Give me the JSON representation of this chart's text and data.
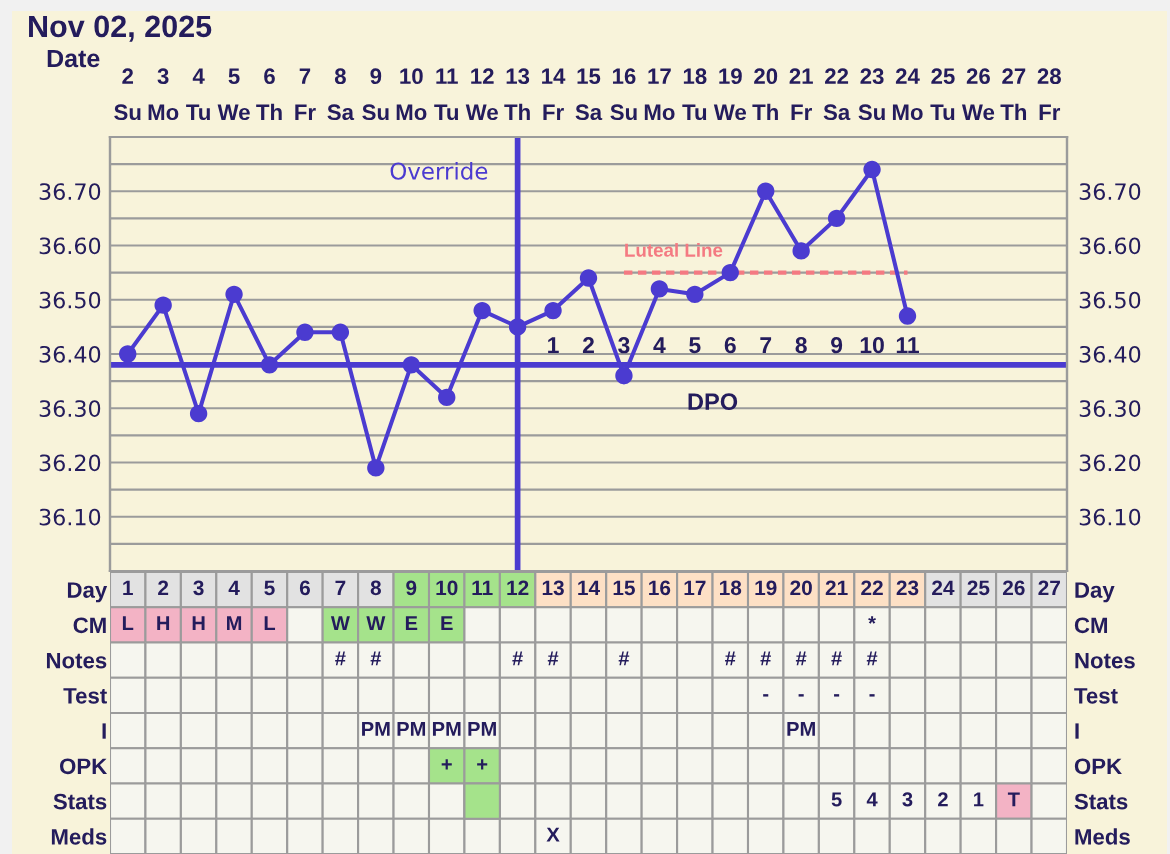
{
  "chart_data": [
    {
      "type": "line",
      "title": "Nov 02, 2025",
      "xlabel": "Date",
      "categories": [
        "2\nSu",
        "3\nMo",
        "4\nTu",
        "5\nWe",
        "6\nTh",
        "7\nFr",
        "8\nSa",
        "9\nSu",
        "10\nMo",
        "11\nTu",
        "12\nWe",
        "13\nTh",
        "14\nFr",
        "15\nSa",
        "16\nSu",
        "17\nMo",
        "18\nTu",
        "19\nWe",
        "20\nTh",
        "21\nFr",
        "22\nSa",
        "23\nSu",
        "24\nMo",
        "25\nTu",
        "26\nWe",
        "27\nTh",
        "28\nFr"
      ],
      "series": [
        {
          "color": "#4b3bd0",
          "values": [
            36.4,
            36.49,
            36.29,
            36.51,
            36.38,
            36.44,
            36.44,
            36.19,
            36.38,
            36.32,
            36.48,
            36.45,
            36.48,
            36.54,
            36.36,
            36.52,
            36.51,
            36.55,
            36.7,
            36.59,
            36.65,
            36.74,
            36.47,
            null,
            null,
            null,
            null
          ]
        },
        {
          "name": "Luteal Line",
          "color": "#f47a82",
          "line_style": "dashed",
          "marker": "none",
          "values": [
            null,
            null,
            null,
            null,
            null,
            null,
            null,
            null,
            null,
            null,
            null,
            null,
            null,
            null,
            36.55,
            36.55,
            36.55,
            36.55,
            36.55,
            36.55,
            36.55,
            36.55,
            36.55,
            null,
            null,
            null,
            null
          ]
        }
      ],
      "marker": "circle",
      "line_style": "solid",
      "grid": true,
      "ylim": [
        36.0,
        36.8
      ],
      "yticks": [
        {
          "value": 36.05,
          "label": null
        },
        {
          "value": 36.1,
          "label": "36.10"
        },
        {
          "value": 36.15,
          "label": null
        },
        {
          "value": 36.2,
          "label": "36.20"
        },
        {
          "value": 36.25,
          "label": null
        },
        {
          "value": 36.3,
          "label": "36.30"
        },
        {
          "value": 36.35,
          "label": null
        },
        {
          "value": 36.4,
          "label": "36.40"
        },
        {
          "value": 36.45,
          "label": null
        },
        {
          "value": 36.5,
          "label": "36.50"
        },
        {
          "value": 36.55,
          "label": null
        },
        {
          "value": 36.6,
          "label": "36.60"
        },
        {
          "value": 36.65,
          "label": null
        },
        {
          "value": 36.7,
          "label": "36.70"
        },
        {
          "value": 36.75,
          "label": null
        }
      ],
      "y2lim": [
        36.0,
        36.8
      ],
      "y2ticks": [
        {
          "value": 36.05,
          "label": null
        },
        {
          "value": 36.1,
          "label": "36.10"
        },
        {
          "value": 36.15,
          "label": null
        },
        {
          "value": 36.2,
          "label": "36.20"
        },
        {
          "value": 36.25,
          "label": null
        },
        {
          "value": 36.3,
          "label": "36.30"
        },
        {
          "value": 36.35,
          "label": null
        },
        {
          "value": 36.4,
          "label": "36.40"
        },
        {
          "value": 36.45,
          "label": null
        },
        {
          "value": 36.5,
          "label": "36.50"
        },
        {
          "value": 36.55,
          "label": null
        },
        {
          "value": 36.6,
          "label": "36.60"
        },
        {
          "value": 36.65,
          "label": null
        },
        {
          "value": 36.7,
          "label": "36.70"
        },
        {
          "value": 36.75,
          "label": null
        }
      ],
      "x2label": "DPO",
      "x2lim": [
        -11.5,
        15.5
      ],
      "x2ticks": [
        1,
        2,
        3,
        4,
        5,
        6,
        7,
        8,
        9,
        10,
        11
      ],
      "ref_lines": [
        {
          "axis": "x",
          "value": "13\nTh",
          "label": "Override",
          "color": "#4b3bd0"
        },
        {
          "axis": "y",
          "value": 36.38,
          "color": "#4b3bd0"
        }
      ]
    },
    {
      "type": "heatmap",
      "categories": [
        null,
        null,
        null,
        null,
        null,
        null,
        null,
        null,
        null,
        null,
        null,
        null,
        null,
        null,
        null,
        null,
        null,
        null,
        null,
        null,
        null,
        null,
        null,
        null,
        null,
        null,
        null
      ],
      "y_categories": [
        "Day",
        "CM",
        "Notes",
        "Test",
        "I",
        "OPK",
        "Stats",
        "Meds"
      ],
      "y2_categories": [
        "Day",
        "CM",
        "Notes",
        "Test",
        "I",
        "OPK",
        "Stats",
        "Meds"
      ],
      "cells": [
        [
          null,
          null,
          null,
          null,
          null,
          null,
          null,
          null,
          null,
          null,
          null,
          null,
          null,
          null,
          null,
          null,
          null,
          null,
          null,
          null,
          null,
          null,
          null,
          null,
          null,
          null,
          null
        ],
        [
          null,
          null,
          null,
          null,
          null,
          null,
          null,
          null,
          null,
          null,
          null,
          null,
          null,
          null,
          null,
          null,
          null,
          null,
          null,
          null,
          null,
          null,
          null,
          null,
          null,
          null,
          null
        ],
        [
          null,
          null,
          null,
          null,
          null,
          null,
          null,
          null,
          null,
          null,
          null,
          null,
          null,
          null,
          null,
          null,
          null,
          null,
          null,
          null,
          null,
          null,
          null,
          null,
          null,
          null,
          null
        ],
        [
          null,
          null,
          null,
          null,
          null,
          null,
          null,
          null,
          null,
          null,
          null,
          null,
          null,
          null,
          null,
          null,
          null,
          null,
          null,
          null,
          null,
          null,
          null,
          null,
          null,
          null,
          null
        ],
        [
          null,
          null,
          null,
          null,
          null,
          null,
          null,
          null,
          null,
          null,
          null,
          null,
          null,
          null,
          null,
          null,
          null,
          null,
          null,
          null,
          null,
          null,
          null,
          null,
          null,
          null,
          null
        ],
        [
          null,
          null,
          null,
          null,
          null,
          null,
          null,
          null,
          null,
          null,
          null,
          null,
          null,
          null,
          null,
          null,
          null,
          null,
          null,
          null,
          null,
          null,
          null,
          null,
          null,
          null,
          null
        ],
        [
          null,
          null,
          null,
          null,
          null,
          null,
          null,
          null,
          null,
          null,
          null,
          null,
          null,
          null,
          null,
          null,
          null,
          null,
          null,
          null,
          null,
          null,
          null,
          null,
          null,
          null,
          null
        ],
        [
          null,
          null,
          null,
          null,
          null,
          null,
          null,
          null,
          null,
          null,
          null,
          null,
          null,
          null,
          null,
          null,
          null,
          null,
          null,
          null,
          null,
          null,
          null,
          null,
          null,
          null,
          null
        ]
      ],
      "cell_labels": [
        [
          "1",
          "2",
          "3",
          "4",
          "5",
          "6",
          "7",
          "8",
          "9",
          "10",
          "11",
          "12",
          "13",
          "14",
          "15",
          "16",
          "17",
          "18",
          "19",
          "20",
          "21",
          "22",
          "23",
          "24",
          "25",
          "26",
          "27"
        ],
        [
          "L",
          "H",
          "H",
          "M",
          "L",
          null,
          "W",
          "W",
          "E",
          "E",
          null,
          null,
          null,
          null,
          null,
          null,
          null,
          null,
          null,
          null,
          null,
          "*",
          null,
          null,
          null,
          null,
          null
        ],
        [
          null,
          null,
          null,
          null,
          null,
          null,
          "#",
          "#",
          null,
          null,
          null,
          "#",
          "#",
          null,
          "#",
          null,
          null,
          "#",
          "#",
          "#",
          "#",
          "#",
          null,
          null,
          null,
          null,
          null
        ],
        [
          null,
          null,
          null,
          null,
          null,
          null,
          null,
          null,
          null,
          null,
          null,
          null,
          null,
          null,
          null,
          null,
          null,
          null,
          "-",
          "-",
          "-",
          "-",
          null,
          null,
          null,
          null,
          null
        ],
        [
          null,
          null,
          null,
          null,
          null,
          null,
          null,
          "PM",
          "PM",
          "PM",
          "PM",
          null,
          null,
          null,
          null,
          null,
          null,
          null,
          null,
          "PM",
          null,
          null,
          null,
          null,
          null,
          null,
          null
        ],
        [
          null,
          null,
          null,
          null,
          null,
          null,
          null,
          null,
          null,
          "+",
          "+",
          null,
          null,
          null,
          null,
          null,
          null,
          null,
          null,
          null,
          null,
          null,
          null,
          null,
          null,
          null,
          null
        ],
        [
          null,
          null,
          null,
          null,
          null,
          null,
          null,
          null,
          null,
          null,
          null,
          null,
          null,
          null,
          null,
          null,
          null,
          null,
          null,
          null,
          "5",
          "4",
          "3",
          "2",
          "1",
          "T",
          null
        ],
        [
          null,
          null,
          null,
          null,
          null,
          null,
          null,
          null,
          null,
          null,
          null,
          null,
          "X",
          null,
          null,
          null,
          null,
          null,
          null,
          null,
          null,
          null,
          null,
          null,
          null,
          null,
          null
        ]
      ],
      "color": "#f6f6ef",
      "colors": [
        [
          "#e2e2e2",
          "#e2e2e2",
          "#e2e2e2",
          "#e2e2e2",
          "#e2e2e2",
          "#e2e2e2",
          "#e2e2e2",
          "#e2e2e2",
          "#a5e38b",
          "#a5e38b",
          "#a5e38b",
          "#a5e38b",
          "#fde0c5",
          "#fde0c5",
          "#fde0c5",
          "#fde0c5",
          "#fde0c5",
          "#fde0c5",
          "#fde0c5",
          "#fde0c5",
          "#fde0c5",
          "#fde0c5",
          "#fde0c5",
          "#e2e2e2",
          "#e2e2e2",
          "#e2e2e2",
          "#e2e2e2"
        ],
        [
          "#f3b3c5",
          "#f3b3c5",
          "#f3b3c5",
          "#f3b3c5",
          "#f3b3c5",
          null,
          "#a5e38b",
          "#a5e38b",
          "#a5e38b",
          "#a5e38b",
          null,
          null,
          null,
          null,
          null,
          null,
          null,
          null,
          null,
          null,
          null,
          null,
          null,
          null,
          null,
          null,
          null
        ],
        [
          null,
          null,
          null,
          null,
          null,
          null,
          null,
          null,
          null,
          null,
          null,
          null,
          null,
          null,
          null,
          null,
          null,
          null,
          null,
          null,
          null,
          null,
          null,
          null,
          null,
          null,
          null
        ],
        [
          null,
          null,
          null,
          null,
          null,
          null,
          null,
          null,
          null,
          null,
          null,
          null,
          null,
          null,
          null,
          null,
          null,
          null,
          null,
          null,
          null,
          null,
          null,
          null,
          null,
          null,
          null
        ],
        [
          null,
          null,
          null,
          null,
          null,
          null,
          null,
          null,
          null,
          null,
          null,
          null,
          null,
          null,
          null,
          null,
          null,
          null,
          null,
          null,
          null,
          null,
          null,
          null,
          null,
          null,
          null
        ],
        [
          null,
          null,
          null,
          null,
          null,
          null,
          null,
          null,
          null,
          "#a5e38b",
          "#a5e38b",
          null,
          null,
          null,
          null,
          null,
          null,
          null,
          null,
          null,
          null,
          null,
          null,
          null,
          null,
          null,
          null
        ],
        [
          null,
          null,
          null,
          null,
          null,
          null,
          null,
          null,
          null,
          null,
          "#a5e38b",
          null,
          null,
          null,
          null,
          null,
          null,
          null,
          null,
          null,
          null,
          null,
          null,
          null,
          null,
          "#f3b3c5",
          null
        ],
        [
          null,
          null,
          null,
          null,
          null,
          null,
          null,
          null,
          null,
          null,
          null,
          null,
          null,
          null,
          null,
          null,
          null,
          null,
          null,
          null,
          null,
          null,
          null,
          null,
          null,
          null,
          null
        ]
      ]
    }
  ]
}
